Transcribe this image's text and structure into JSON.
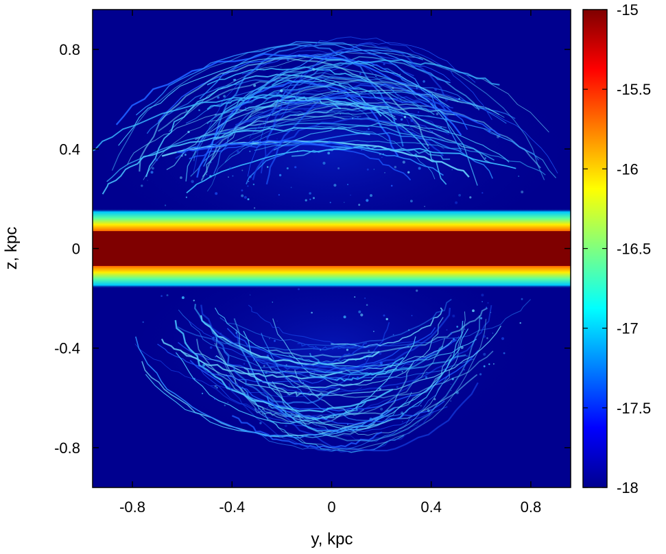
{
  "chart_data": {
    "type": "heatmap",
    "title": "",
    "xlabel": "y, kpc",
    "ylabel": "z, kpc",
    "xlim": [
      -0.96,
      0.96
    ],
    "ylim": [
      -0.96,
      0.96
    ],
    "x_ticks": [
      -0.8,
      -0.4,
      0,
      0.4,
      0.8
    ],
    "x_tick_labels": [
      "-0.8",
      "-0.4",
      "0",
      "0.4",
      "0.8"
    ],
    "y_ticks": [
      0.8,
      0.4,
      0,
      -0.4,
      -0.8
    ],
    "y_tick_labels": [
      "0.8",
      "0.4",
      "0",
      "-0.4",
      "-0.8"
    ],
    "colorbar": {
      "range": [
        -18,
        -15
      ],
      "ticks": [
        -15,
        -15.5,
        -16,
        -16.5,
        -17,
        -17.5,
        -18
      ],
      "tick_labels": [
        "-15",
        "-15.5",
        "-16",
        "-16.5",
        "-17",
        "-17.5",
        "-18"
      ],
      "colormap": "jet"
    },
    "features": {
      "disk_half_thickness_kpc": 0.16,
      "disk_core_half_thickness_kpc": 0.07,
      "upper_bubble_top_kpc": 0.85,
      "lower_bubble_bottom_kpc": -0.82,
      "bubble_half_width_kpc": 0.92
    },
    "background_value": -18
  },
  "colors": {
    "background": "#00008f",
    "disk_core": "#7f0000"
  }
}
